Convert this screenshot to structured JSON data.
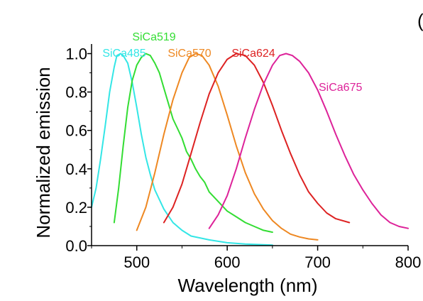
{
  "chart_data": {
    "type": "line",
    "xlabel": "Wavelength (nm)",
    "ylabel": "Normalized emission",
    "xlim": [
      450,
      800
    ],
    "ylim": [
      0.0,
      1.05
    ],
    "xticks": [
      500,
      600,
      700,
      800
    ],
    "xtick_labels": [
      "500",
      "600",
      "700",
      "800"
    ],
    "yticks": [
      0.0,
      0.2,
      0.4,
      0.6,
      0.8,
      1.0
    ],
    "ytick_labels": [
      "0.0",
      "0.2",
      "0.4",
      "0.6",
      "0.8",
      "1.0"
    ],
    "grid": false,
    "corner_glyph": "(",
    "series": [
      {
        "name": "SiCa485",
        "color": "#33e6e6",
        "points": [
          [
            450,
            0.2
          ],
          [
            455,
            0.3
          ],
          [
            460,
            0.45
          ],
          [
            465,
            0.62
          ],
          [
            470,
            0.8
          ],
          [
            475,
            0.93
          ],
          [
            478,
            0.99
          ],
          [
            482,
            1.0
          ],
          [
            485,
            0.99
          ],
          [
            490,
            0.95
          ],
          [
            495,
            0.85
          ],
          [
            500,
            0.72
          ],
          [
            505,
            0.58
          ],
          [
            510,
            0.46
          ],
          [
            515,
            0.37
          ],
          [
            520,
            0.29
          ],
          [
            530,
            0.19
          ],
          [
            540,
            0.12
          ],
          [
            550,
            0.08
          ],
          [
            560,
            0.05
          ],
          [
            580,
            0.03
          ],
          [
            600,
            0.015
          ],
          [
            620,
            0.008
          ],
          [
            650,
            0.003
          ]
        ]
      },
      {
        "name": "SiCa519",
        "color": "#33dd33",
        "points": [
          [
            475,
            0.12
          ],
          [
            480,
            0.3
          ],
          [
            485,
            0.52
          ],
          [
            490,
            0.72
          ],
          [
            495,
            0.86
          ],
          [
            500,
            0.94
          ],
          [
            505,
            0.98
          ],
          [
            510,
            1.0
          ],
          [
            515,
            0.99
          ],
          [
            520,
            0.95
          ],
          [
            525,
            0.9
          ],
          [
            530,
            0.82
          ],
          [
            535,
            0.74
          ],
          [
            540,
            0.66
          ],
          [
            545,
            0.61
          ],
          [
            550,
            0.56
          ],
          [
            555,
            0.49
          ],
          [
            560,
            0.45
          ],
          [
            565,
            0.4
          ],
          [
            570,
            0.36
          ],
          [
            575,
            0.33
          ],
          [
            580,
            0.28
          ],
          [
            590,
            0.23
          ],
          [
            600,
            0.18
          ],
          [
            610,
            0.15
          ],
          [
            620,
            0.12
          ],
          [
            630,
            0.1
          ],
          [
            640,
            0.08
          ],
          [
            650,
            0.07
          ]
        ]
      },
      {
        "name": "SiCa570",
        "color": "#ee8822",
        "points": [
          [
            500,
            0.08
          ],
          [
            510,
            0.2
          ],
          [
            520,
            0.38
          ],
          [
            530,
            0.58
          ],
          [
            540,
            0.76
          ],
          [
            550,
            0.9
          ],
          [
            558,
            0.98
          ],
          [
            565,
            1.0
          ],
          [
            572,
            0.99
          ],
          [
            580,
            0.94
          ],
          [
            590,
            0.83
          ],
          [
            600,
            0.68
          ],
          [
            610,
            0.52
          ],
          [
            620,
            0.38
          ],
          [
            630,
            0.27
          ],
          [
            640,
            0.19
          ],
          [
            650,
            0.13
          ],
          [
            660,
            0.09
          ],
          [
            670,
            0.06
          ],
          [
            680,
            0.045
          ],
          [
            690,
            0.035
          ],
          [
            700,
            0.03
          ]
        ]
      },
      {
        "name": "SiCa624",
        "color": "#dd2222",
        "points": [
          [
            530,
            0.12
          ],
          [
            540,
            0.2
          ],
          [
            550,
            0.32
          ],
          [
            560,
            0.48
          ],
          [
            570,
            0.64
          ],
          [
            580,
            0.79
          ],
          [
            590,
            0.9
          ],
          [
            600,
            0.97
          ],
          [
            610,
            1.0
          ],
          [
            620,
            0.99
          ],
          [
            630,
            0.94
          ],
          [
            640,
            0.85
          ],
          [
            650,
            0.73
          ],
          [
            660,
            0.6
          ],
          [
            670,
            0.48
          ],
          [
            680,
            0.37
          ],
          [
            690,
            0.28
          ],
          [
            700,
            0.22
          ],
          [
            710,
            0.17
          ],
          [
            720,
            0.14
          ],
          [
            735,
            0.12
          ]
        ]
      },
      {
        "name": "SiCa675",
        "color": "#dd2299",
        "points": [
          [
            580,
            0.09
          ],
          [
            590,
            0.16
          ],
          [
            600,
            0.26
          ],
          [
            610,
            0.4
          ],
          [
            620,
            0.56
          ],
          [
            630,
            0.71
          ],
          [
            640,
            0.84
          ],
          [
            650,
            0.94
          ],
          [
            658,
            0.99
          ],
          [
            665,
            1.0
          ],
          [
            672,
            0.99
          ],
          [
            680,
            0.96
          ],
          [
            690,
            0.9
          ],
          [
            700,
            0.81
          ],
          [
            710,
            0.7
          ],
          [
            720,
            0.58
          ],
          [
            730,
            0.47
          ],
          [
            740,
            0.37
          ],
          [
            750,
            0.29
          ],
          [
            760,
            0.22
          ],
          [
            770,
            0.16
          ],
          [
            780,
            0.12
          ],
          [
            790,
            0.1
          ],
          [
            800,
            0.09
          ]
        ]
      }
    ]
  }
}
